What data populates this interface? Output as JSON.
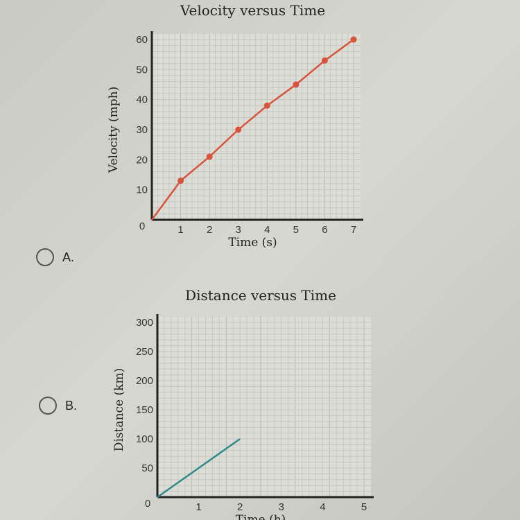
{
  "options": [
    {
      "label": "A."
    },
    {
      "label": "B."
    }
  ],
  "chart_data": [
    {
      "type": "line",
      "title": "Velocity versus Time",
      "xlabel": "Time (s)",
      "ylabel": "Velocity (mph)",
      "x": [
        0,
        1,
        2,
        3,
        4,
        5,
        6,
        7
      ],
      "y": [
        0,
        13,
        21,
        30,
        38,
        45,
        53,
        60
      ],
      "xticks": [
        "1",
        "2",
        "3",
        "4",
        "5",
        "6",
        "7"
      ],
      "yticks": [
        "10",
        "20",
        "30",
        "40",
        "50",
        "60"
      ],
      "origin_label": "0",
      "xlim": [
        0,
        7
      ],
      "ylim": [
        0,
        60
      ],
      "grid": true,
      "color": "#d9533a",
      "markers": true
    },
    {
      "type": "line",
      "title": "Distance versus Time",
      "xlabel": "Time (h)",
      "ylabel": "Distance (km)",
      "x": [
        0,
        2
      ],
      "y": [
        0,
        100
      ],
      "xticks": [
        "1",
        "2",
        "3",
        "4",
        "5"
      ],
      "yticks": [
        "50",
        "100",
        "150",
        "200",
        "250",
        "300"
      ],
      "origin_label": "0",
      "xlim": [
        0,
        5
      ],
      "ylim": [
        0,
        300
      ],
      "grid": true,
      "color": "#2e8a8a",
      "markers": false
    }
  ]
}
